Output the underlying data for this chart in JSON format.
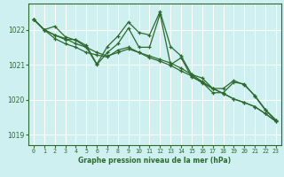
{
  "bg_color": "#cff0f0",
  "grid_color": "#aadddd",
  "line_color": "#2d6a2d",
  "xlabel": "Graphe pression niveau de la mer (hPa)",
  "xlim": [
    -0.5,
    23.5
  ],
  "ylim": [
    1018.7,
    1022.75
  ],
  "yticks": [
    1019,
    1020,
    1021,
    1022
  ],
  "xticks": [
    0,
    1,
    2,
    3,
    4,
    5,
    6,
    7,
    8,
    9,
    10,
    11,
    12,
    13,
    14,
    15,
    16,
    17,
    18,
    19,
    20,
    21,
    22,
    23
  ],
  "series": [
    [
      1022.3,
      1022.0,
      1022.1,
      1021.8,
      1021.7,
      1021.5,
      1021.0,
      1021.35,
      1021.6,
      1022.05,
      1021.5,
      1021.5,
      1022.45,
      1021.0,
      1021.2,
      1020.65,
      1020.5,
      1020.2,
      1020.2,
      1020.5,
      1020.45,
      1020.1,
      1019.7,
      1019.4
    ],
    [
      1022.3,
      1022.0,
      1021.85,
      1021.75,
      1021.6,
      1021.5,
      1021.35,
      1021.25,
      1021.35,
      1021.45,
      1021.35,
      1021.25,
      1021.15,
      1021.05,
      1020.9,
      1020.72,
      1020.52,
      1020.32,
      1020.18,
      1020.02,
      1019.92,
      1019.8,
      1019.6,
      1019.38
    ],
    [
      1022.3,
      1022.0,
      1021.75,
      1021.6,
      1021.5,
      1021.35,
      1021.28,
      1021.22,
      1021.42,
      1021.5,
      1021.35,
      1021.2,
      1021.1,
      1020.98,
      1020.82,
      1020.68,
      1020.48,
      1020.32,
      1020.18,
      1020.02,
      1019.92,
      1019.8,
      1019.6,
      1019.38
    ],
    [
      1022.3,
      1022.0,
      1021.85,
      1021.72,
      1021.72,
      1021.55,
      1021.02,
      1021.52,
      1021.82,
      1022.22,
      1021.92,
      1021.85,
      1022.52,
      1021.52,
      1021.25,
      1020.72,
      1020.62,
      1020.32,
      1020.32,
      1020.55,
      1020.42,
      1020.12,
      1019.72,
      1019.42
    ]
  ]
}
